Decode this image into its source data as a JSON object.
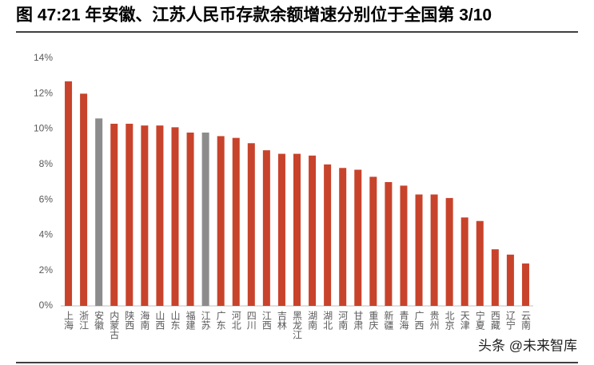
{
  "chart_data": {
    "type": "bar",
    "title": "图 47:21 年安徽、江苏人民币存款余额增速分别位于全国第 3/10",
    "categories": [
      "上海",
      "浙江",
      "安徽",
      "内蒙古",
      "陕西",
      "海南",
      "山西",
      "山东",
      "福建",
      "江苏",
      "广东",
      "河北",
      "四川",
      "江西",
      "吉林",
      "黑龙江",
      "湖南",
      "湖北",
      "河南",
      "甘肃",
      "重庆",
      "新疆",
      "青海",
      "广西",
      "贵州",
      "北京",
      "天津",
      "宁夏",
      "西藏",
      "辽宁",
      "云南"
    ],
    "values": [
      12.7,
      12.0,
      10.6,
      10.3,
      10.3,
      10.2,
      10.2,
      10.1,
      9.8,
      9.8,
      9.6,
      9.5,
      9.2,
      8.8,
      8.6,
      8.6,
      8.5,
      8.0,
      7.8,
      7.7,
      7.3,
      7.0,
      6.8,
      6.3,
      6.3,
      6.1,
      5.0,
      4.8,
      3.2,
      2.9,
      2.4
    ],
    "colors": [
      "#c8432b",
      "#c8432b",
      "#8c8c8c",
      "#c8432b",
      "#c8432b",
      "#c8432b",
      "#c8432b",
      "#c8432b",
      "#c8432b",
      "#8c8c8c",
      "#c8432b",
      "#c8432b",
      "#c8432b",
      "#c8432b",
      "#c8432b",
      "#c8432b",
      "#c8432b",
      "#c8432b",
      "#c8432b",
      "#c8432b",
      "#c8432b",
      "#c8432b",
      "#c8432b",
      "#c8432b",
      "#c8432b",
      "#c8432b",
      "#c8432b",
      "#c8432b",
      "#c8432b",
      "#c8432b",
      "#c8432b"
    ],
    "ylim": [
      0,
      14
    ],
    "yticks": [
      {
        "value": 0,
        "label": "0%"
      },
      {
        "value": 2,
        "label": "2%"
      },
      {
        "value": 4,
        "label": "4%"
      },
      {
        "value": 6,
        "label": "6%"
      },
      {
        "value": 8,
        "label": "8%"
      },
      {
        "value": 10,
        "label": "10%"
      },
      {
        "value": 12,
        "label": "12%"
      },
      {
        "value": 14,
        "label": "14%"
      }
    ],
    "grid": false,
    "watermark": "头条 @未来智库"
  }
}
